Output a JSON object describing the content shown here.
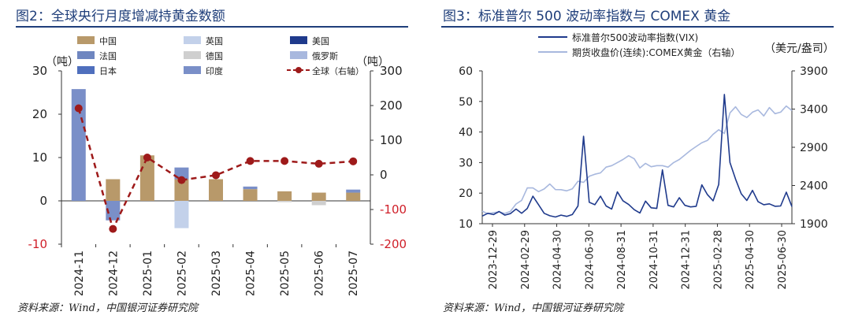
{
  "figures": [
    {
      "title": "图2：全球央行月度增减持黄金数额",
      "source": "资料来源：Wind，中国银河证券研究院"
    },
    {
      "title": "图3：标准普尔 500 波动率指数与 COMEX 黄金",
      "source": "资料来源：Wind，中国银河证券研究院"
    }
  ],
  "chart_data": [
    {
      "type": "bar",
      "categories": [
        "2024-11",
        "2024-12",
        "2025-01",
        "2025-02",
        "2025-03",
        "2025-04",
        "2025-05",
        "2025-06",
        "2025-07"
      ],
      "left_unit": "（吨）",
      "right_unit": "（吨）",
      "ylim_left": [
        -10,
        30
      ],
      "ylim_right": [
        -200,
        300
      ],
      "yticks_left": [
        -10,
        0,
        10,
        20,
        30
      ],
      "yticks_right": [
        -200,
        -100,
        0,
        100,
        200,
        300
      ],
      "series": [
        {
          "name": "中国",
          "color": "#b8996a",
          "values": [
            0,
            5,
            10.5,
            5,
            5,
            2.7,
            2.2,
            1.9,
            1.9
          ]
        },
        {
          "name": "英国",
          "color": "#c3d1ea",
          "values": [
            0,
            0,
            0,
            -6.3,
            0,
            0,
            0,
            0,
            0
          ]
        },
        {
          "name": "美国",
          "color": "#1f3a8c",
          "values": [
            0,
            0,
            0,
            0,
            0,
            0,
            0,
            0,
            0
          ]
        },
        {
          "name": "法国",
          "color": "#6f86c0",
          "values": [
            0,
            0,
            0,
            0,
            0,
            0,
            0,
            0,
            0
          ]
        },
        {
          "name": "德国",
          "color": "#cfcfcf",
          "values": [
            0,
            0,
            0,
            0,
            0,
            0,
            -0.3,
            -1.0,
            0
          ]
        },
        {
          "name": "俄罗斯",
          "color": "#a8b8de",
          "values": [
            0,
            0,
            0,
            0,
            0,
            0,
            0,
            0,
            0
          ]
        },
        {
          "name": "日本",
          "color": "#4f6fbd",
          "values": [
            0,
            0,
            0,
            0,
            0,
            0,
            0,
            0,
            0
          ]
        },
        {
          "name": "印度",
          "color": "#7a8fc8",
          "values": [
            25.8,
            -4.5,
            0,
            2.7,
            0,
            0.6,
            0,
            0,
            0.7
          ]
        }
      ],
      "line": {
        "name": "全球（右轴）",
        "color": "#9e1a1a",
        "values": [
          192,
          -156,
          50,
          -15,
          -1,
          40,
          40,
          32,
          39
        ]
      }
    },
    {
      "type": "line",
      "x_labels": [
        "2023-12-29",
        "2024-02-29",
        "2024-04-30",
        "2024-06-30",
        "2024-08-31",
        "2024-10-31",
        "2024-12-31",
        "2025-02-28",
        "2025-04-30",
        "2025-06-30"
      ],
      "ylim_left": [
        10,
        60
      ],
      "yticks_left": [
        10,
        20,
        30,
        40,
        50,
        60
      ],
      "ylim_right": [
        1900,
        3900
      ],
      "yticks_right": [
        1900,
        2400,
        2900,
        3400,
        3900
      ],
      "right_unit": "（美元/盎司）",
      "series": [
        {
          "name": "标准普尔500波动率指数(VIX)",
          "axis": "left",
          "color": "#1f3a8c",
          "points": [
            [
              0,
              12.5
            ],
            [
              1,
              13.4
            ],
            [
              2,
              13.0
            ],
            [
              3,
              14.0
            ],
            [
              4,
              12.8
            ],
            [
              5,
              13.3
            ],
            [
              6,
              14.8
            ],
            [
              7,
              13.4
            ],
            [
              8,
              15.0
            ],
            [
              9,
              19.0
            ],
            [
              10,
              16.2
            ],
            [
              11,
              13.4
            ],
            [
              12,
              12.6
            ],
            [
              13,
              12.2
            ],
            [
              14,
              12.8
            ],
            [
              15,
              12.4
            ],
            [
              16,
              13.0
            ],
            [
              17,
              15.8
            ],
            [
              18,
              38.6
            ],
            [
              19,
              17.0
            ],
            [
              20,
              16.2
            ],
            [
              21,
              19.0
            ],
            [
              22,
              15.8
            ],
            [
              23,
              14.8
            ],
            [
              24,
              20.4
            ],
            [
              25,
              17.5
            ],
            [
              26,
              16.3
            ],
            [
              27,
              14.6
            ],
            [
              28,
              13.5
            ],
            [
              29,
              17.4
            ],
            [
              30,
              15.2
            ],
            [
              31,
              15.0
            ],
            [
              32,
              27.6
            ],
            [
              33,
              16.0
            ],
            [
              34,
              15.5
            ],
            [
              35,
              18.5
            ],
            [
              36,
              16.0
            ],
            [
              37,
              15.5
            ],
            [
              38,
              15.7
            ],
            [
              39,
              22.7
            ],
            [
              40,
              19.5
            ],
            [
              41,
              17.5
            ],
            [
              42,
              22.8
            ],
            [
              43,
              52.3
            ],
            [
              44,
              30.0
            ],
            [
              45,
              24.6
            ],
            [
              46,
              19.8
            ],
            [
              47,
              17.6
            ],
            [
              48,
              20.9
            ],
            [
              49,
              17.2
            ],
            [
              50,
              16.2
            ],
            [
              51,
              16.5
            ],
            [
              52,
              15.7
            ],
            [
              53,
              15.8
            ],
            [
              54,
              20.3
            ],
            [
              55,
              15.6
            ]
          ]
        },
        {
          "name": "期货收盘价(连续):COMEX黄金（右轴）",
          "axis": "right",
          "color": "#a8b8de",
          "points": [
            [
              0,
              2064
            ],
            [
              1,
              2030
            ],
            [
              2,
              2045
            ],
            [
              3,
              2055
            ],
            [
              4,
              2034
            ],
            [
              5,
              2061
            ],
            [
              6,
              2158
            ],
            [
              7,
              2205
            ],
            [
              8,
              2368
            ],
            [
              9,
              2368
            ],
            [
              10,
              2320
            ],
            [
              11,
              2355
            ],
            [
              12,
              2420
            ],
            [
              13,
              2346
            ],
            [
              14,
              2345
            ],
            [
              15,
              2330
            ],
            [
              16,
              2356
            ],
            [
              17,
              2456
            ],
            [
              18,
              2441
            ],
            [
              19,
              2521
            ],
            [
              20,
              2547
            ],
            [
              21,
              2565
            ],
            [
              22,
              2640
            ],
            [
              23,
              2660
            ],
            [
              24,
              2700
            ],
            [
              25,
              2740
            ],
            [
              26,
              2790
            ],
            [
              27,
              2750
            ],
            [
              28,
              2630
            ],
            [
              29,
              2690
            ],
            [
              30,
              2645
            ],
            [
              31,
              2660
            ],
            [
              32,
              2660
            ],
            [
              33,
              2640
            ],
            [
              34,
              2700
            ],
            [
              35,
              2740
            ],
            [
              36,
              2800
            ],
            [
              37,
              2860
            ],
            [
              38,
              2910
            ],
            [
              39,
              2960
            ],
            [
              40,
              2990
            ],
            [
              41,
              3070
            ],
            [
              42,
              3130
            ],
            [
              43,
              3080
            ],
            [
              44,
              3350
            ],
            [
              45,
              3430
            ],
            [
              46,
              3330
            ],
            [
              47,
              3290
            ],
            [
              48,
              3360
            ],
            [
              49,
              3390
            ],
            [
              50,
              3310
            ],
            [
              51,
              3420
            ],
            [
              52,
              3340
            ],
            [
              53,
              3360
            ],
            [
              54,
              3440
            ],
            [
              55,
              3380
            ]
          ]
        }
      ]
    }
  ]
}
